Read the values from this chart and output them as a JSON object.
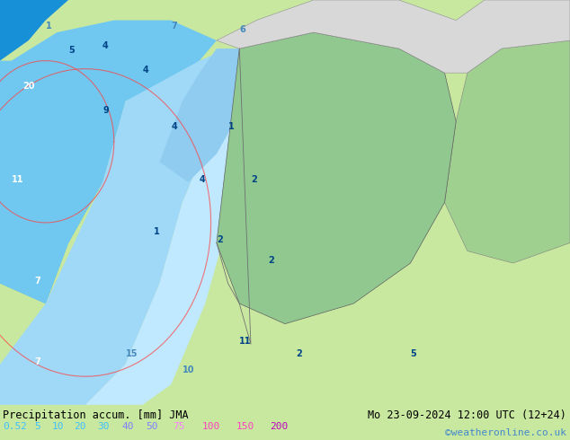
{
  "title_left": "Precipitation accum. [mm] JMA",
  "title_right": "Mo 23-09-2024 12:00 UTC (12+24)",
  "credit": "©weatheronline.co.uk",
  "colorbar_values": [
    0.5,
    2,
    5,
    10,
    20,
    30,
    40,
    50,
    75,
    100,
    150,
    200
  ],
  "colorbar_colors": [
    "#e0f8ff",
    "#b0e8ff",
    "#80d0f8",
    "#50b8f0",
    "#20a0e8",
    "#1080d0",
    "#0060b8",
    "#0040a0",
    "#ff80ff",
    "#ff40ff",
    "#ff00ff",
    "#c000c0"
  ],
  "colorbar_text_colors": [
    "#40c0ff",
    "#40c0ff",
    "#40c0ff",
    "#40c0ff",
    "#40c0ff",
    "#40c0ff",
    "#8080ff",
    "#8080ff",
    "#ff80ff",
    "#ff40c0",
    "#ff40c0",
    "#c000c0"
  ],
  "bg_color": "#c8e8c8",
  "fig_width": 6.34,
  "fig_height": 4.9,
  "dpi": 100
}
